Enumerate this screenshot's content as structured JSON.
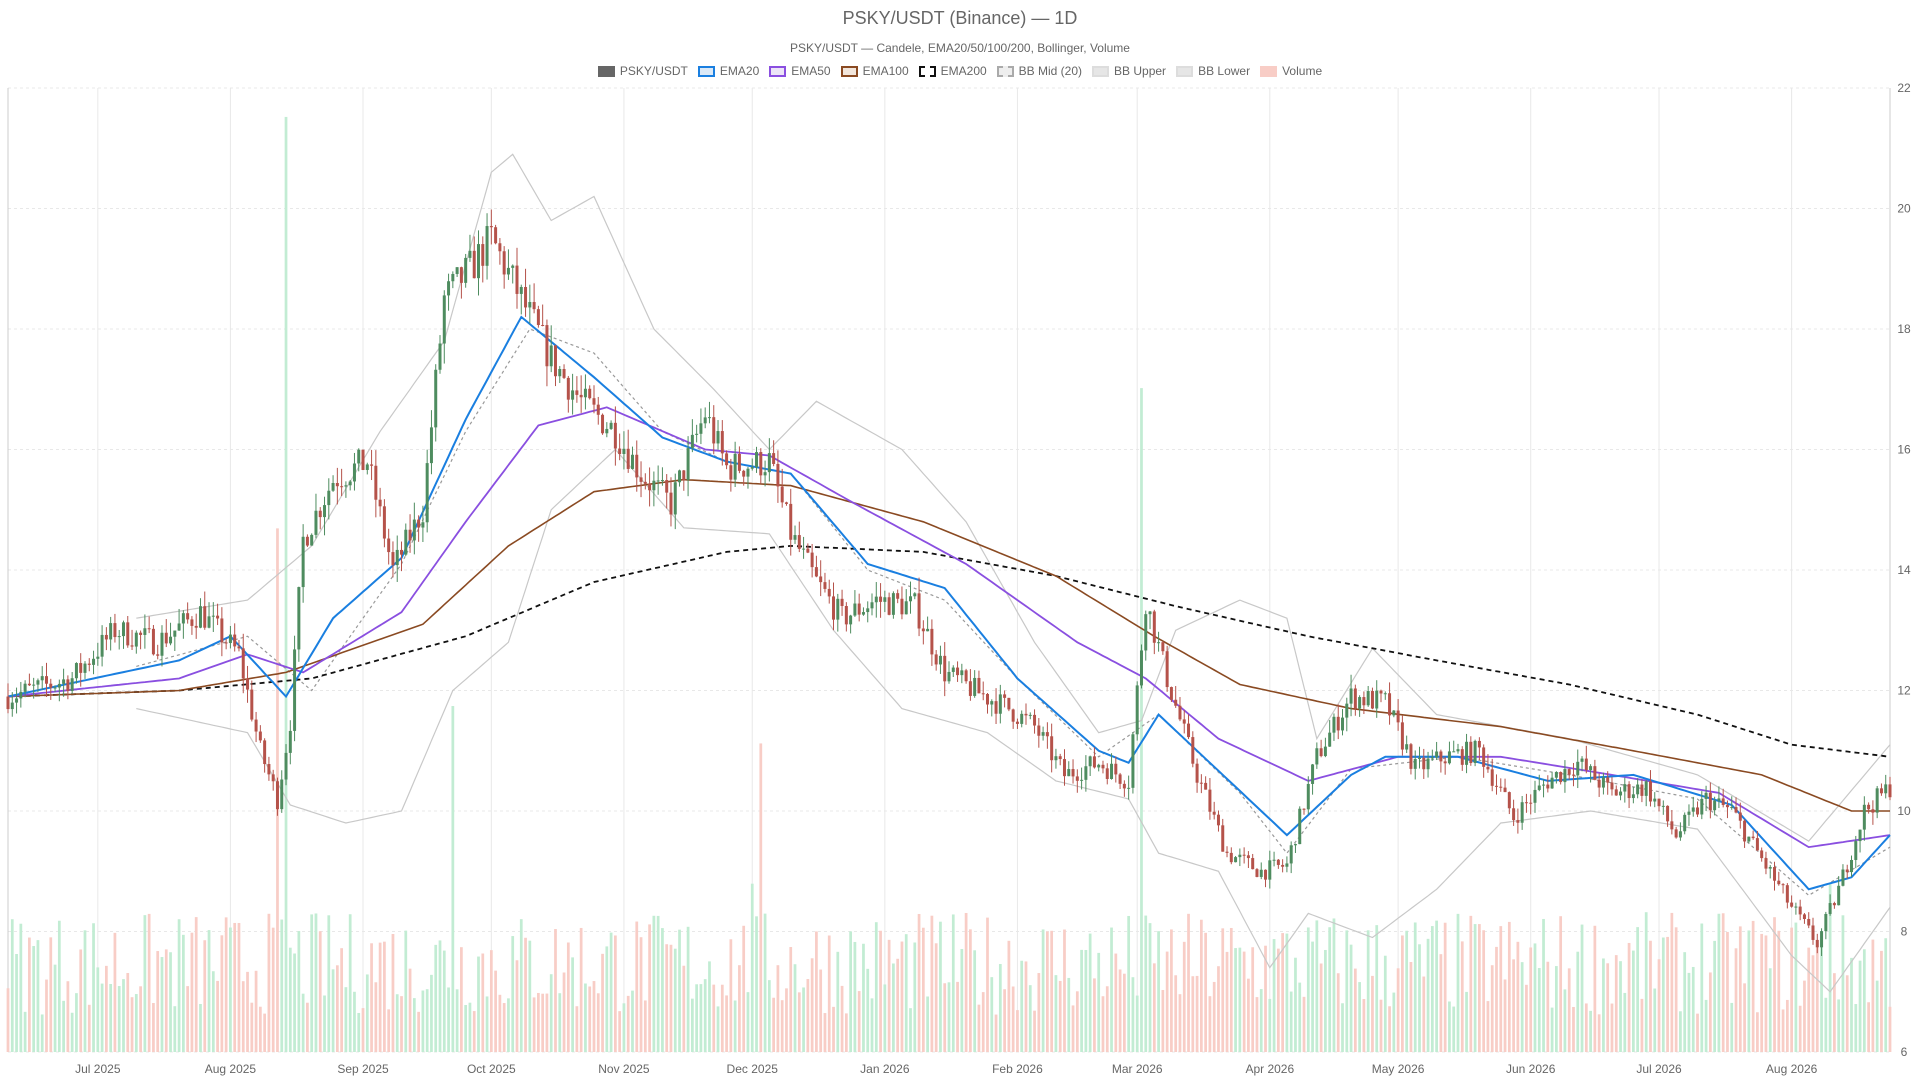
{
  "title": "PSKY/USDT (Binance) — 1D",
  "subtitle": "PSKY/USDT — Candele, EMA20/50/100/200, Bollinger, Volume",
  "legend": [
    {
      "label": "PSKY/USDT",
      "fill": "#666666",
      "stroke": "#666666",
      "dash": false
    },
    {
      "label": "EMA20",
      "fill": "#dbe9f7",
      "stroke": "#1a7fe0",
      "dash": false
    },
    {
      "label": "EMA50",
      "fill": "#ece4f7",
      "stroke": "#8a4fe0",
      "dash": false
    },
    {
      "label": "EMA100",
      "fill": "#f2e6dc",
      "stroke": "#8a4a22",
      "dash": false
    },
    {
      "label": "EMA200",
      "fill": "#ffffff",
      "stroke": "#111111",
      "dash": true
    },
    {
      "label": "BB Mid (20)",
      "fill": "#eeeeee",
      "stroke": "#aaaaaa",
      "dash": true
    },
    {
      "label": "BB Upper",
      "fill": "#e6e6e6",
      "stroke": "#dddddd",
      "dash": false
    },
    {
      "label": "BB Lower",
      "fill": "#e6e6e6",
      "stroke": "#dddddd",
      "dash": false
    },
    {
      "label": "Volume",
      "fill": "#f8cdc6",
      "stroke": "#f8cdc6",
      "dash": false
    }
  ],
  "colors": {
    "up": "#4e8c5f",
    "down": "#b5524a",
    "vol_up": "#c2ecd3",
    "vol_down": "#f8cdc6",
    "grid": "#e8e8e8"
  },
  "chart_data": {
    "type": "candlestick",
    "x_ticks": [
      "Jul 2025",
      "Aug 2025",
      "Sep 2025",
      "Oct 2025",
      "Nov 2025",
      "Dec 2025",
      "Jan 2026",
      "Feb 2026",
      "Mar 2026",
      "Apr 2026",
      "May 2026",
      "Jun 2026",
      "Jul 2026",
      "Aug 2026"
    ],
    "y_ticks": [
      6,
      8,
      10,
      12,
      14,
      16,
      18,
      20,
      22
    ],
    "ylim": [
      6,
      22
    ],
    "x_range": [
      "2025-06-10",
      "2026-08-24"
    ],
    "grid": true,
    "legend_position": "top-center",
    "price_anchors": [
      [
        "2025-06-10",
        11.9
      ],
      [
        "2025-06-25",
        12.2
      ],
      [
        "2025-07-05",
        13.0
      ],
      [
        "2025-07-15",
        12.8
      ],
      [
        "2025-07-25",
        13.3
      ],
      [
        "2025-08-03",
        12.6
      ],
      [
        "2025-08-08",
        11.0
      ],
      [
        "2025-08-12",
        10.2
      ],
      [
        "2025-08-15",
        11.5
      ],
      [
        "2025-08-18",
        14.5
      ],
      [
        "2025-08-25",
        15.5
      ],
      [
        "2025-09-02",
        15.8
      ],
      [
        "2025-09-08",
        14.0
      ],
      [
        "2025-09-15",
        15.0
      ],
      [
        "2025-09-20",
        18.5
      ],
      [
        "2025-09-26",
        19.0
      ],
      [
        "2025-10-01",
        19.5
      ],
      [
        "2025-10-08",
        18.5
      ],
      [
        "2025-10-15",
        17.5
      ],
      [
        "2025-10-22",
        16.8
      ],
      [
        "2025-10-30",
        16.3
      ],
      [
        "2025-11-05",
        15.6
      ],
      [
        "2025-11-12",
        15.1
      ],
      [
        "2025-11-20",
        16.6
      ],
      [
        "2025-11-25",
        15.7
      ],
      [
        "2025-12-05",
        15.8
      ],
      [
        "2025-12-10",
        14.6
      ],
      [
        "2025-12-16",
        13.8
      ],
      [
        "2025-12-22",
        13.2
      ],
      [
        "2025-12-30",
        13.5
      ],
      [
        "2026-01-08",
        13.4
      ],
      [
        "2026-01-15",
        12.3
      ],
      [
        "2026-01-22",
        12.0
      ],
      [
        "2026-01-30",
        11.7
      ],
      [
        "2026-02-05",
        11.4
      ],
      [
        "2026-02-12",
        10.6
      ],
      [
        "2026-02-20",
        10.8
      ],
      [
        "2026-02-27",
        10.5
      ],
      [
        "2026-03-03",
        13.5
      ],
      [
        "2026-03-08",
        12.2
      ],
      [
        "2026-03-15",
        10.6
      ],
      [
        "2026-03-22",
        9.3
      ],
      [
        "2026-03-30",
        9.0
      ],
      [
        "2026-04-05",
        9.1
      ],
      [
        "2026-04-12",
        10.9
      ],
      [
        "2026-04-20",
        11.9
      ],
      [
        "2026-04-28",
        11.8
      ],
      [
        "2026-05-05",
        10.7
      ],
      [
        "2026-05-12",
        10.9
      ],
      [
        "2026-05-20",
        11.0
      ],
      [
        "2026-05-28",
        9.9
      ],
      [
        "2026-06-05",
        10.5
      ],
      [
        "2026-06-12",
        10.8
      ],
      [
        "2026-06-20",
        10.3
      ],
      [
        "2026-06-28",
        10.4
      ],
      [
        "2026-07-05",
        9.6
      ],
      [
        "2026-07-12",
        10.2
      ],
      [
        "2026-07-18",
        10.0
      ],
      [
        "2026-07-25",
        9.2
      ],
      [
        "2026-08-01",
        8.4
      ],
      [
        "2026-08-07",
        7.8
      ],
      [
        "2026-08-12",
        8.7
      ],
      [
        "2026-08-18",
        10.0
      ],
      [
        "2026-08-24",
        10.4
      ]
    ],
    "ema20": [
      [
        "2025-06-10",
        11.9
      ],
      [
        "2025-07-20",
        12.5
      ],
      [
        "2025-08-01",
        12.9
      ],
      [
        "2025-08-14",
        11.9
      ],
      [
        "2025-08-25",
        13.2
      ],
      [
        "2025-09-10",
        14.2
      ],
      [
        "2025-09-25",
        16.5
      ],
      [
        "2025-10-08",
        18.2
      ],
      [
        "2025-10-25",
        17.2
      ],
      [
        "2025-11-10",
        16.2
      ],
      [
        "2025-11-25",
        15.8
      ],
      [
        "2025-12-10",
        15.6
      ],
      [
        "2025-12-28",
        14.1
      ],
      [
        "2026-01-15",
        13.7
      ],
      [
        "2026-02-01",
        12.2
      ],
      [
        "2026-02-20",
        11.0
      ],
      [
        "2026-02-27",
        10.8
      ],
      [
        "2026-03-06",
        11.6
      ],
      [
        "2026-03-18",
        10.8
      ],
      [
        "2026-04-05",
        9.6
      ],
      [
        "2026-04-20",
        10.6
      ],
      [
        "2026-04-28",
        10.9
      ],
      [
        "2026-05-15",
        10.9
      ],
      [
        "2026-06-05",
        10.5
      ],
      [
        "2026-06-25",
        10.6
      ],
      [
        "2026-07-18",
        10.1
      ],
      [
        "2026-08-05",
        8.7
      ],
      [
        "2026-08-15",
        8.9
      ],
      [
        "2026-08-24",
        9.6
      ]
    ],
    "ema50": [
      [
        "2025-06-10",
        11.9
      ],
      [
        "2025-07-20",
        12.2
      ],
      [
        "2025-08-05",
        12.6
      ],
      [
        "2025-08-18",
        12.3
      ],
      [
        "2025-09-10",
        13.3
      ],
      [
        "2025-09-25",
        14.8
      ],
      [
        "2025-10-12",
        16.4
      ],
      [
        "2025-10-28",
        16.7
      ],
      [
        "2025-11-20",
        16.0
      ],
      [
        "2025-12-05",
        15.9
      ],
      [
        "2025-12-25",
        15.1
      ],
      [
        "2026-01-20",
        14.1
      ],
      [
        "2026-02-15",
        12.8
      ],
      [
        "2026-03-03",
        12.2
      ],
      [
        "2026-03-20",
        11.2
      ],
      [
        "2026-04-10",
        10.5
      ],
      [
        "2026-05-01",
        10.9
      ],
      [
        "2026-05-25",
        10.9
      ],
      [
        "2026-06-20",
        10.6
      ],
      [
        "2026-07-15",
        10.3
      ],
      [
        "2026-08-05",
        9.4
      ],
      [
        "2026-08-24",
        9.6
      ]
    ],
    "ema100": [
      [
        "2025-06-10",
        11.9
      ],
      [
        "2025-07-20",
        12.0
      ],
      [
        "2025-08-14",
        12.3
      ],
      [
        "2025-09-15",
        13.1
      ],
      [
        "2025-10-05",
        14.4
      ],
      [
        "2025-10-25",
        15.3
      ],
      [
        "2025-11-15",
        15.5
      ],
      [
        "2025-12-10",
        15.4
      ],
      [
        "2026-01-10",
        14.8
      ],
      [
        "2026-02-10",
        13.9
      ],
      [
        "2026-03-05",
        12.9
      ],
      [
        "2026-03-25",
        12.1
      ],
      [
        "2026-04-20",
        11.7
      ],
      [
        "2026-05-25",
        11.4
      ],
      [
        "2026-06-25",
        11.0
      ],
      [
        "2026-07-25",
        10.6
      ],
      [
        "2026-08-15",
        10.0
      ],
      [
        "2026-08-24",
        10.0
      ]
    ],
    "ema200": [
      [
        "2025-06-10",
        11.9
      ],
      [
        "2025-07-20",
        12.0
      ],
      [
        "2025-08-20",
        12.2
      ],
      [
        "2025-09-25",
        12.9
      ],
      [
        "2025-10-25",
        13.8
      ],
      [
        "2025-11-25",
        14.3
      ],
      [
        "2025-12-10",
        14.4
      ],
      [
        "2026-01-10",
        14.3
      ],
      [
        "2026-02-10",
        13.9
      ],
      [
        "2026-03-10",
        13.4
      ],
      [
        "2026-04-10",
        12.9
      ],
      [
        "2026-05-10",
        12.5
      ],
      [
        "2026-06-10",
        12.1
      ],
      [
        "2026-07-10",
        11.6
      ],
      [
        "2026-08-01",
        11.1
      ],
      [
        "2026-08-24",
        10.9
      ]
    ],
    "bb_mid": [
      [
        "2025-07-10",
        12.4
      ],
      [
        "2025-08-05",
        12.9
      ],
      [
        "2025-08-20",
        12.0
      ],
      [
        "2025-09-10",
        14.1
      ],
      [
        "2025-09-25",
        16.3
      ],
      [
        "2025-10-10",
        18.0
      ],
      [
        "2025-10-25",
        17.6
      ],
      [
        "2025-11-10",
        16.3
      ],
      [
        "2025-11-25",
        15.8
      ],
      [
        "2025-12-10",
        15.6
      ],
      [
        "2025-12-28",
        14.0
      ],
      [
        "2026-01-15",
        13.5
      ],
      [
        "2026-02-01",
        12.2
      ],
      [
        "2026-02-20",
        10.9
      ],
      [
        "2026-03-06",
        11.6
      ],
      [
        "2026-03-25",
        10.3
      ],
      [
        "2026-04-05",
        9.3
      ],
      [
        "2026-04-20",
        10.7
      ],
      [
        "2026-05-15",
        10.9
      ],
      [
        "2026-06-10",
        10.6
      ],
      [
        "2026-07-10",
        10.2
      ],
      [
        "2026-08-05",
        8.6
      ],
      [
        "2026-08-24",
        9.4
      ]
    ],
    "bb_upper": [
      [
        "2025-07-10",
        13.2
      ],
      [
        "2025-08-05",
        13.5
      ],
      [
        "2025-08-20",
        14.4
      ],
      [
        "2025-09-05",
        16.3
      ],
      [
        "2025-09-20",
        17.8
      ],
      [
        "2025-10-01",
        20.6
      ],
      [
        "2025-10-06",
        20.9
      ],
      [
        "2025-10-15",
        19.8
      ],
      [
        "2025-10-25",
        20.2
      ],
      [
        "2025-11-08",
        18.0
      ],
      [
        "2025-11-22",
        17.0
      ],
      [
        "2025-12-05",
        16.0
      ],
      [
        "2025-12-16",
        16.8
      ],
      [
        "2026-01-05",
        16.0
      ],
      [
        "2026-01-20",
        14.8
      ],
      [
        "2026-02-05",
        12.8
      ],
      [
        "2026-02-20",
        11.3
      ],
      [
        "2026-03-02",
        11.5
      ],
      [
        "2026-03-10",
        13.0
      ],
      [
        "2026-03-25",
        13.5
      ],
      [
        "2026-04-05",
        13.2
      ],
      [
        "2026-04-12",
        11.2
      ],
      [
        "2026-04-25",
        12.7
      ],
      [
        "2026-05-10",
        11.6
      ],
      [
        "2026-06-10",
        11.2
      ],
      [
        "2026-07-10",
        10.6
      ],
      [
        "2026-08-05",
        9.5
      ],
      [
        "2026-08-24",
        11.1
      ]
    ],
    "bb_lower": [
      [
        "2025-07-10",
        11.7
      ],
      [
        "2025-08-05",
        11.3
      ],
      [
        "2025-08-15",
        10.1
      ],
      [
        "2025-08-28",
        9.8
      ],
      [
        "2025-09-10",
        10.0
      ],
      [
        "2025-09-22",
        12.0
      ],
      [
        "2025-10-05",
        12.8
      ],
      [
        "2025-10-15",
        15.0
      ],
      [
        "2025-10-30",
        16.0
      ],
      [
        "2025-11-15",
        14.7
      ],
      [
        "2025-12-05",
        14.6
      ],
      [
        "2025-12-20",
        13.0
      ],
      [
        "2026-01-05",
        11.7
      ],
      [
        "2026-01-25",
        11.3
      ],
      [
        "2026-02-10",
        10.5
      ],
      [
        "2026-02-27",
        10.2
      ],
      [
        "2026-03-06",
        9.3
      ],
      [
        "2026-03-20",
        9.0
      ],
      [
        "2026-04-01",
        7.4
      ],
      [
        "2026-04-10",
        8.3
      ],
      [
        "2026-04-25",
        7.9
      ],
      [
        "2026-05-10",
        8.7
      ],
      [
        "2026-05-25",
        9.8
      ],
      [
        "2026-06-15",
        10.0
      ],
      [
        "2026-07-10",
        9.7
      ],
      [
        "2026-08-01",
        7.6
      ],
      [
        "2026-08-10",
        7.0
      ],
      [
        "2026-08-24",
        8.4
      ]
    ],
    "volume": {
      "max_bar_fraction": 0.97,
      "spikes": [
        [
          "2025-08-14",
          1.0
        ],
        [
          "2025-08-12",
          0.56
        ],
        [
          "2025-09-22",
          0.37
        ],
        [
          "2026-03-02",
          0.71
        ],
        [
          "2025-12-03",
          0.33
        ],
        [
          "2025-12-01",
          0.18
        ],
        [
          "2026-08-10",
          0.18
        ]
      ]
    }
  }
}
